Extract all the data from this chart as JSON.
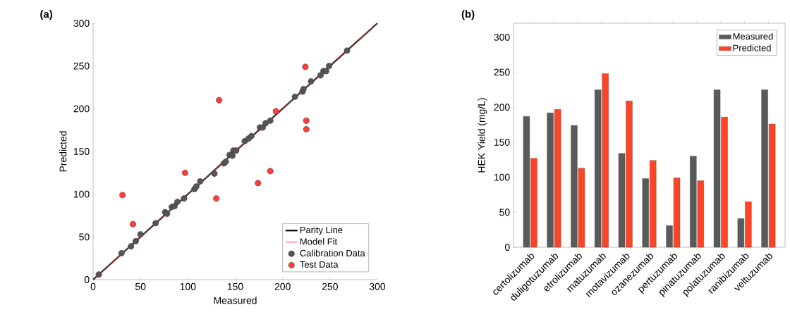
{
  "chart_data": [
    {
      "type": "scatter",
      "annotations": [
        "(a)"
      ],
      "xlabel": "Measured",
      "ylabel": "Predicted",
      "xlim": [
        0,
        300
      ],
      "ylim": [
        0,
        300
      ],
      "xticks": [
        0,
        50,
        100,
        150,
        200,
        250,
        300
      ],
      "yticks": [
        0,
        50,
        100,
        150,
        200,
        250,
        300
      ],
      "legend": "bottom right",
      "series": [
        {
          "name": "Parity Line",
          "type": "line",
          "marker": "none",
          "color": "#000000",
          "x": [
            0,
            300
          ],
          "values": [
            0,
            300
          ]
        },
        {
          "name": "Model Fit",
          "type": "line",
          "marker": "none",
          "color": "#ff4040",
          "x": [
            0,
            300
          ],
          "values": [
            0,
            300
          ]
        },
        {
          "name": "Calibration Data",
          "type": "scatter",
          "marker": "circle",
          "color": "#555555",
          "x": [
            6,
            30,
            40,
            45,
            50,
            66,
            76,
            78,
            83,
            86,
            89,
            96,
            107,
            109,
            113,
            128,
            138,
            140,
            144,
            147,
            148,
            151,
            160,
            164,
            167,
            176,
            179,
            182,
            187,
            213,
            221,
            222,
            230,
            240,
            243,
            246,
            249,
            268
          ],
          "values": [
            6,
            31,
            39,
            45,
            53,
            66,
            79,
            77,
            85,
            86,
            91,
            95,
            106,
            109,
            115,
            124,
            136,
            138,
            146,
            145,
            151,
            151,
            162,
            165,
            168,
            178,
            178,
            183,
            186,
            214,
            220,
            223,
            232,
            239,
            244,
            244,
            250,
            268
          ]
        },
        {
          "name": "Test Data",
          "type": "scatter",
          "marker": "circle",
          "color": "#ff3b3b",
          "x": [
            31,
            42,
            97,
            133,
            130,
            174,
            187,
            193,
            224,
            225,
            225
          ],
          "values": [
            99,
            65,
            125,
            210,
            95,
            113,
            127,
            197,
            249,
            186,
            176
          ]
        }
      ]
    },
    {
      "type": "bar",
      "annotations": [
        "(b)"
      ],
      "ylabel": "HEK Yield (mg/L)",
      "ylim": [
        0,
        320
      ],
      "yticks": [
        0,
        50,
        100,
        150,
        200,
        250,
        300
      ],
      "legend": "top right",
      "categories": [
        "certolizumab",
        "duligotuzumab",
        "etrolizumab",
        "matuzumab",
        "motavizumab",
        "ozanezumab",
        "pertuzumab",
        "pinatuzumab",
        "polatuzumab",
        "ranibizumab",
        "veltuzumab"
      ],
      "series": [
        {
          "name": "Measured",
          "color": "#5a5a5a",
          "values": [
            187,
            192,
            174,
            225,
            134,
            98,
            31,
            130,
            225,
            41,
            225
          ]
        },
        {
          "name": "Predicted",
          "color": "#ff4426",
          "values": [
            127,
            197,
            113,
            248,
            209,
            124,
            99,
            95,
            186,
            65,
            176
          ]
        }
      ]
    }
  ]
}
